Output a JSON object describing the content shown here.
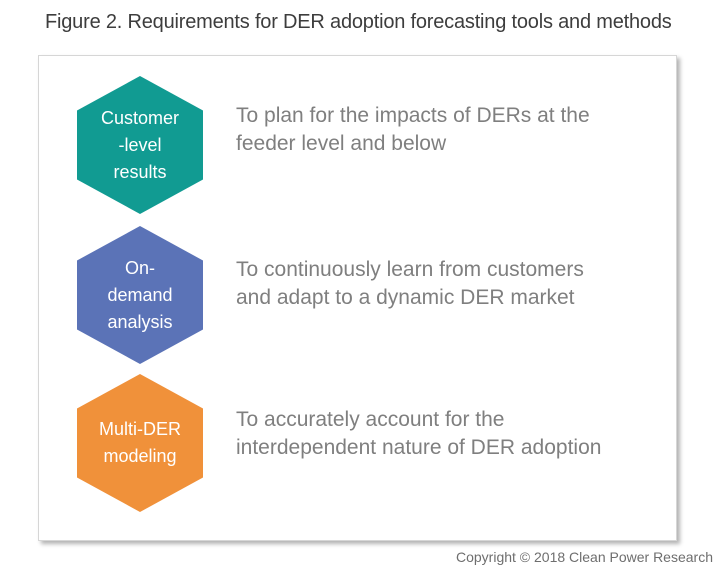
{
  "figure": {
    "title": "Figure 2. Requirements for DER adoption forecasting tools and methods",
    "copyright": "Copyright © 2018 Clean Power Research"
  },
  "rows": [
    {
      "hex": {
        "lines": [
          "Customer",
          "-level",
          "results"
        ],
        "color": "#119B92"
      },
      "desc": {
        "lines": [
          "To plan for the impacts of DERs at the",
          "feeder level and below"
        ]
      }
    },
    {
      "hex": {
        "lines": [
          "On-",
          "demand",
          "analysis"
        ],
        "color": "#5B73B7"
      },
      "desc": {
        "lines": [
          "To continuously learn from customers",
          "and adapt to a dynamic DER market"
        ]
      }
    },
    {
      "hex": {
        "lines": [
          "Multi-DER",
          "modeling"
        ],
        "color": "#F0913A"
      },
      "desc": {
        "lines": [
          "To accurately account for the",
          "interdependent nature of DER adoption"
        ]
      }
    }
  ]
}
